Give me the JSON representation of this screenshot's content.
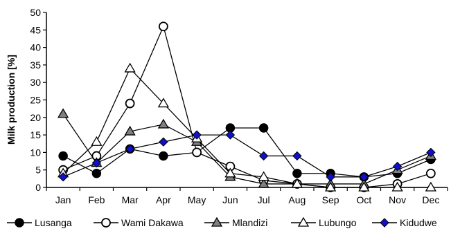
{
  "chart_data": {
    "type": "line",
    "title": "",
    "xlabel": "",
    "ylabel": "Milk production [%]",
    "ylim": [
      0,
      50
    ],
    "yticks": [
      0,
      5,
      10,
      15,
      20,
      25,
      30,
      35,
      40,
      45,
      50
    ],
    "categories": [
      "Jan",
      "Feb",
      "Mar",
      "Apr",
      "May",
      "Jun",
      "Jul",
      "Aug",
      "Sep",
      "Oct",
      "Nov",
      "Dec"
    ],
    "grid": false,
    "legend_position": "bottom",
    "series": [
      {
        "name": "Lusanga",
        "marker": "filled-circle",
        "color": "#000000",
        "values": [
          9,
          4,
          11,
          9,
          10,
          17,
          17,
          4,
          4,
          3,
          4,
          8
        ]
      },
      {
        "name": "Wami Dakawa",
        "marker": "open-circle",
        "color": "#000000",
        "values": [
          5,
          9,
          24,
          46,
          10,
          6,
          2,
          1,
          0,
          0,
          1,
          4
        ]
      },
      {
        "name": "Mlandizi",
        "marker": "gray-triangle",
        "color": "#808080",
        "values": [
          21,
          7,
          16,
          18,
          13,
          3,
          1,
          1,
          1,
          1,
          5,
          9
        ]
      },
      {
        "name": "Lubungo",
        "marker": "open-triangle",
        "color": "#d0d0d0",
        "values": [
          4,
          13,
          34,
          24,
          14,
          4,
          3,
          1,
          0,
          0,
          0,
          0
        ]
      },
      {
        "name": "Kidudwe",
        "marker": "blue-diamond",
        "color": "#1010cc",
        "values": [
          3,
          7,
          11,
          13,
          15,
          15,
          9,
          9,
          3,
          3,
          6,
          10
        ]
      }
    ]
  }
}
